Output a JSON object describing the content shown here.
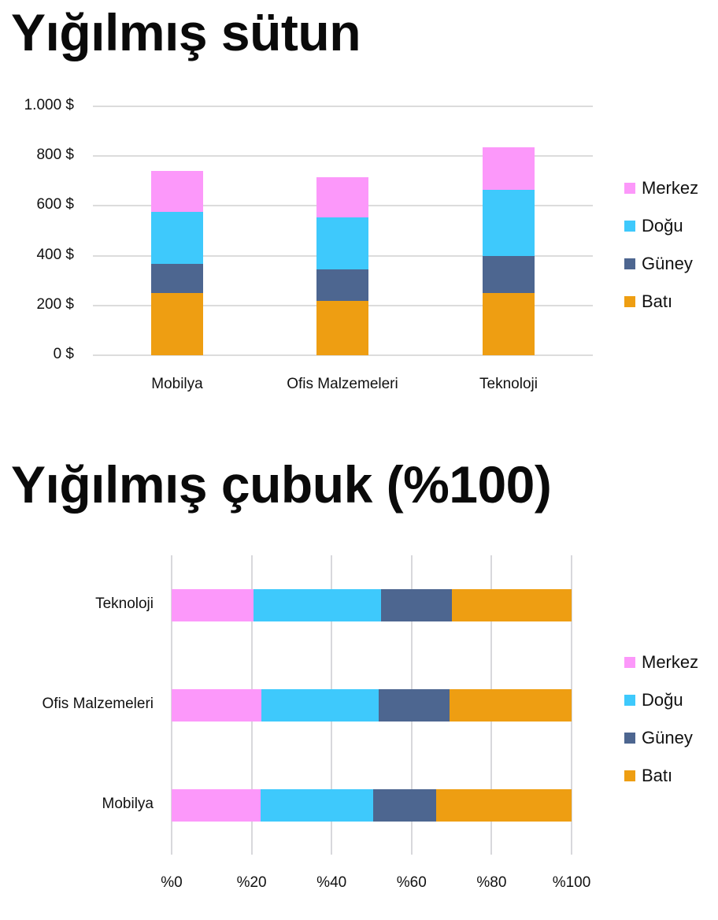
{
  "titles": {
    "chart1": "Yığılmış sütun",
    "chart2": "Yığılmış çubuk (%100)"
  },
  "colors": {
    "Merkez": "#fc98fa",
    "Doğu": "#3ec9fc",
    "Güney": "#4d6690",
    "Batı": "#ee9e12"
  },
  "legend": [
    "Merkez",
    "Doğu",
    "Güney",
    "Batı"
  ],
  "chart_data": [
    {
      "type": "bar",
      "stacked": true,
      "orientation": "vertical",
      "title": "Yığılmış sütun",
      "categories": [
        "Mobilya",
        "Ofis Malzemeleri",
        "Teknoloji"
      ],
      "series": [
        {
          "name": "Batı",
          "values": [
            250,
            218,
            250
          ]
        },
        {
          "name": "Güney",
          "values": [
            117,
            127,
            149
          ]
        },
        {
          "name": "Doğu",
          "values": [
            209,
            209,
            266
          ]
        },
        {
          "name": "Merkez",
          "values": [
            164,
            161,
            170
          ]
        }
      ],
      "yticks": [
        "0 $",
        "200 $",
        "400 $",
        "600 $",
        "800 $",
        "1.000 $"
      ],
      "ylim": [
        0,
        1000
      ],
      "xlabel": "",
      "ylabel": "",
      "grid": true,
      "legend_position": "right"
    },
    {
      "type": "bar",
      "stacked": true,
      "normalized": true,
      "orientation": "horizontal",
      "title": "Yığılmış çubuk (%100)",
      "categories": [
        "Teknoloji",
        "Ofis Malzemeleri",
        "Mobilya"
      ],
      "series": [
        {
          "name": "Merkez",
          "values": [
            20.4,
            22.5,
            22.2
          ]
        },
        {
          "name": "Doğu",
          "values": [
            31.9,
            29.2,
            28.2
          ]
        },
        {
          "name": "Güney",
          "values": [
            17.8,
            17.8,
            15.8
          ]
        },
        {
          "name": "Batı",
          "values": [
            29.9,
            30.5,
            33.8
          ]
        }
      ],
      "xticks": [
        "%0",
        "%20",
        "%40",
        "%60",
        "%80",
        "%100"
      ],
      "xlim": [
        0,
        100
      ],
      "grid": true,
      "legend_position": "right"
    }
  ]
}
